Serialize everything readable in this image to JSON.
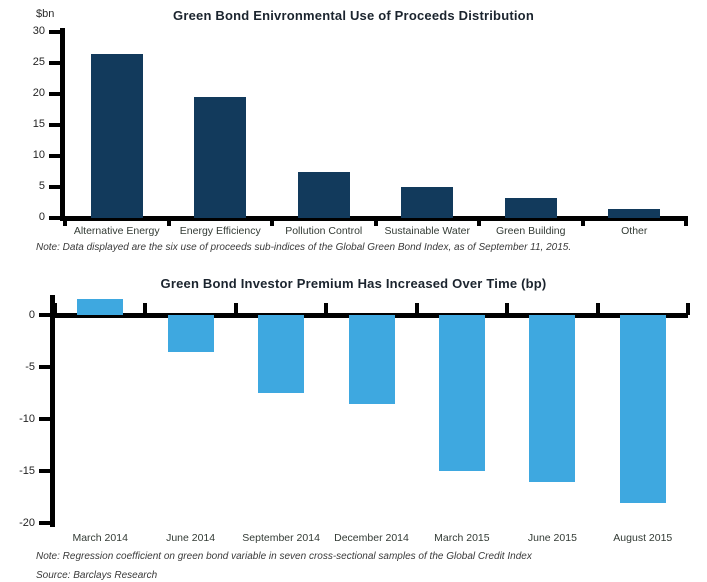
{
  "chart_data": [
    {
      "type": "bar",
      "title": "Green Bond Enivronmental Use of Proceeds Distribution",
      "ylabel": "$bn",
      "categories": [
        "Alternative Energy",
        "Energy Efficiency",
        "Pollution Control",
        "Sustainable Water",
        "Green Building",
        "Other"
      ],
      "values": [
        26.5,
        19.5,
        7.5,
        5,
        3.2,
        1.5
      ],
      "ylim": [
        0,
        30
      ],
      "yticks": [
        30,
        25,
        20,
        15,
        10,
        5,
        0
      ],
      "bar_color": "#123A5C",
      "grid": false,
      "legend": "none",
      "note": "Note: Data displayed are the six use of proceeds sub-indices of the Global Green Bond Index, as of September 11, 2015."
    },
    {
      "type": "bar",
      "title": "Green Bond Investor Premium Has Increased Over Time (bp)",
      "ylabel": "",
      "categories": [
        "March 2014",
        "June 2014",
        "September 2014",
        "December 2014",
        "March 2015",
        "June 2015",
        "August 2015"
      ],
      "values": [
        1.5,
        -3.5,
        -7.5,
        -8.5,
        -15,
        -16,
        -18
      ],
      "ylim": [
        -20,
        2
      ],
      "yticks": [
        0,
        -5,
        -10,
        -15,
        -20
      ],
      "bar_color": "#3EA8E0",
      "grid": false,
      "legend": "none",
      "note": "Note: Regression coefficient on green bond variable in seven cross-sectional samples of the Global Credit Index"
    }
  ],
  "source": "Source: Barclays Research"
}
